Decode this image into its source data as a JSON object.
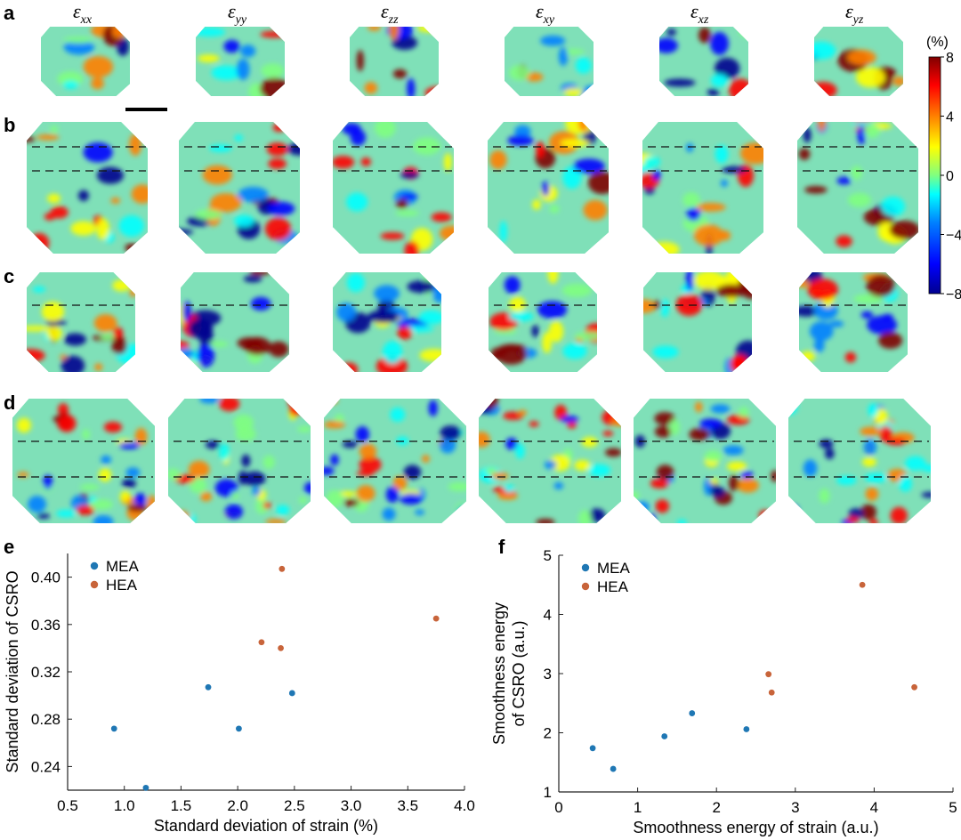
{
  "panel_labels": {
    "a": "a",
    "b": "b",
    "c": "c",
    "d": "d",
    "e": "e",
    "f": "f"
  },
  "strain_headers": [
    {
      "base": "ε",
      "sub": "xx"
    },
    {
      "base": "ε",
      "sub": "yy"
    },
    {
      "base": "ε",
      "sub": "zz"
    },
    {
      "base": "ε",
      "sub": "xy"
    },
    {
      "base": "ε",
      "sub": "xz"
    },
    {
      "base": "ε",
      "sub": "yz"
    }
  ],
  "colorbar": {
    "unit": "(%)",
    "ticks": [
      "8",
      "4",
      "0",
      "−4",
      "−8"
    ],
    "tick_values": [
      8,
      4,
      0,
      -4,
      -8
    ],
    "range": [
      -8,
      8
    ],
    "colormap": [
      "#00008f",
      "#0000ff",
      "#0080ff",
      "#00ffff",
      "#80ff80",
      "#ffff00",
      "#ff8000",
      "#ff0000",
      "#800000"
    ]
  },
  "colors": {
    "MEA": "#1f77b4",
    "HEA": "#c8643a"
  },
  "chart_data": [
    {
      "type": "scatter",
      "title": "",
      "xlabel": "Standard deviation of strain (%)",
      "ylabel": "Standard deviation of CSRO",
      "xlim": [
        0.5,
        4.0
      ],
      "ylim": [
        0.22,
        0.42
      ],
      "xticks": [
        "0.5",
        "1.0",
        "1.5",
        "2.0",
        "2.5",
        "3.0",
        "3.5",
        "4.0"
      ],
      "xtick_values": [
        0.5,
        1.0,
        1.5,
        2.0,
        2.5,
        3.0,
        3.5,
        4.0
      ],
      "yticks": [
        "0.24",
        "0.28",
        "0.32",
        "0.36",
        "0.40"
      ],
      "ytick_values": [
        0.24,
        0.28,
        0.32,
        0.36,
        0.4
      ],
      "legend_position": "top-left",
      "grid": false,
      "series": [
        {
          "name": "MEA",
          "points": [
            [
              0.91,
              0.272
            ],
            [
              1.19,
              0.222
            ],
            [
              1.74,
              0.307
            ],
            [
              2.01,
              0.272
            ],
            [
              2.48,
              0.302
            ]
          ]
        },
        {
          "name": "HEA",
          "points": [
            [
              2.39,
              0.407
            ],
            [
              2.21,
              0.345
            ],
            [
              2.38,
              0.34
            ],
            [
              3.75,
              0.365
            ]
          ]
        }
      ]
    },
    {
      "type": "scatter",
      "title": "",
      "xlabel": "Smoothness energy of strain (a.u.)",
      "ylabel_lines": [
        "Smoothness energy",
        "of CSRO (a.u.)"
      ],
      "xlim": [
        0,
        5
      ],
      "ylim": [
        1,
        5
      ],
      "xticks": [
        "0",
        "1",
        "2",
        "3",
        "4",
        "5"
      ],
      "xtick_values": [
        0,
        1,
        2,
        3,
        4,
        5
      ],
      "yticks": [
        "1",
        "2",
        "3",
        "4",
        "5"
      ],
      "ytick_values": [
        1,
        2,
        3,
        4,
        5
      ],
      "legend_position": "top-left",
      "grid": false,
      "series": [
        {
          "name": "MEA",
          "points": [
            [
              0.43,
              1.74
            ],
            [
              0.69,
              1.39
            ],
            [
              1.34,
              1.94
            ],
            [
              1.69,
              2.33
            ],
            [
              2.38,
              2.06
            ]
          ]
        },
        {
          "name": "HEA",
          "points": [
            [
              2.66,
              2.99
            ],
            [
              2.7,
              2.68
            ],
            [
              3.85,
              4.5
            ],
            [
              4.51,
              2.77
            ]
          ]
        }
      ]
    }
  ]
}
